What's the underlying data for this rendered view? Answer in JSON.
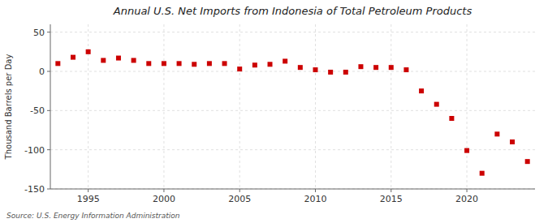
{
  "chart_data": {
    "type": "scatter",
    "title": "Annual U.S. Net Imports from Indonesia of Total Petroleum Products",
    "ylabel": "Thousand Barrels per Day",
    "source": "Source: U.S. Energy Information Administration",
    "color": "#cc0000",
    "marker": "square",
    "x": [
      1993,
      1994,
      1995,
      1996,
      1997,
      1998,
      1999,
      2000,
      2001,
      2002,
      2003,
      2004,
      2005,
      2006,
      2007,
      2008,
      2009,
      2010,
      2011,
      2012,
      2013,
      2014,
      2015,
      2016,
      2017,
      2018,
      2019,
      2020,
      2021,
      2022,
      2023,
      2024
    ],
    "values": [
      10,
      18,
      25,
      14,
      17,
      14,
      10,
      10,
      10,
      9,
      10,
      10,
      3,
      8,
      9,
      13,
      5,
      2,
      -1,
      -1,
      6,
      5,
      5,
      2,
      -25,
      -42,
      -60,
      -101,
      -130,
      -80,
      -90,
      -115
    ],
    "xlim": [
      1992.5,
      2024.5
    ],
    "ylim": [
      -150,
      60
    ],
    "xticks": [
      1995,
      2000,
      2005,
      2010,
      2015,
      2020
    ],
    "yticks": [
      -150,
      -100,
      -50,
      0,
      50
    ],
    "grid": true
  }
}
